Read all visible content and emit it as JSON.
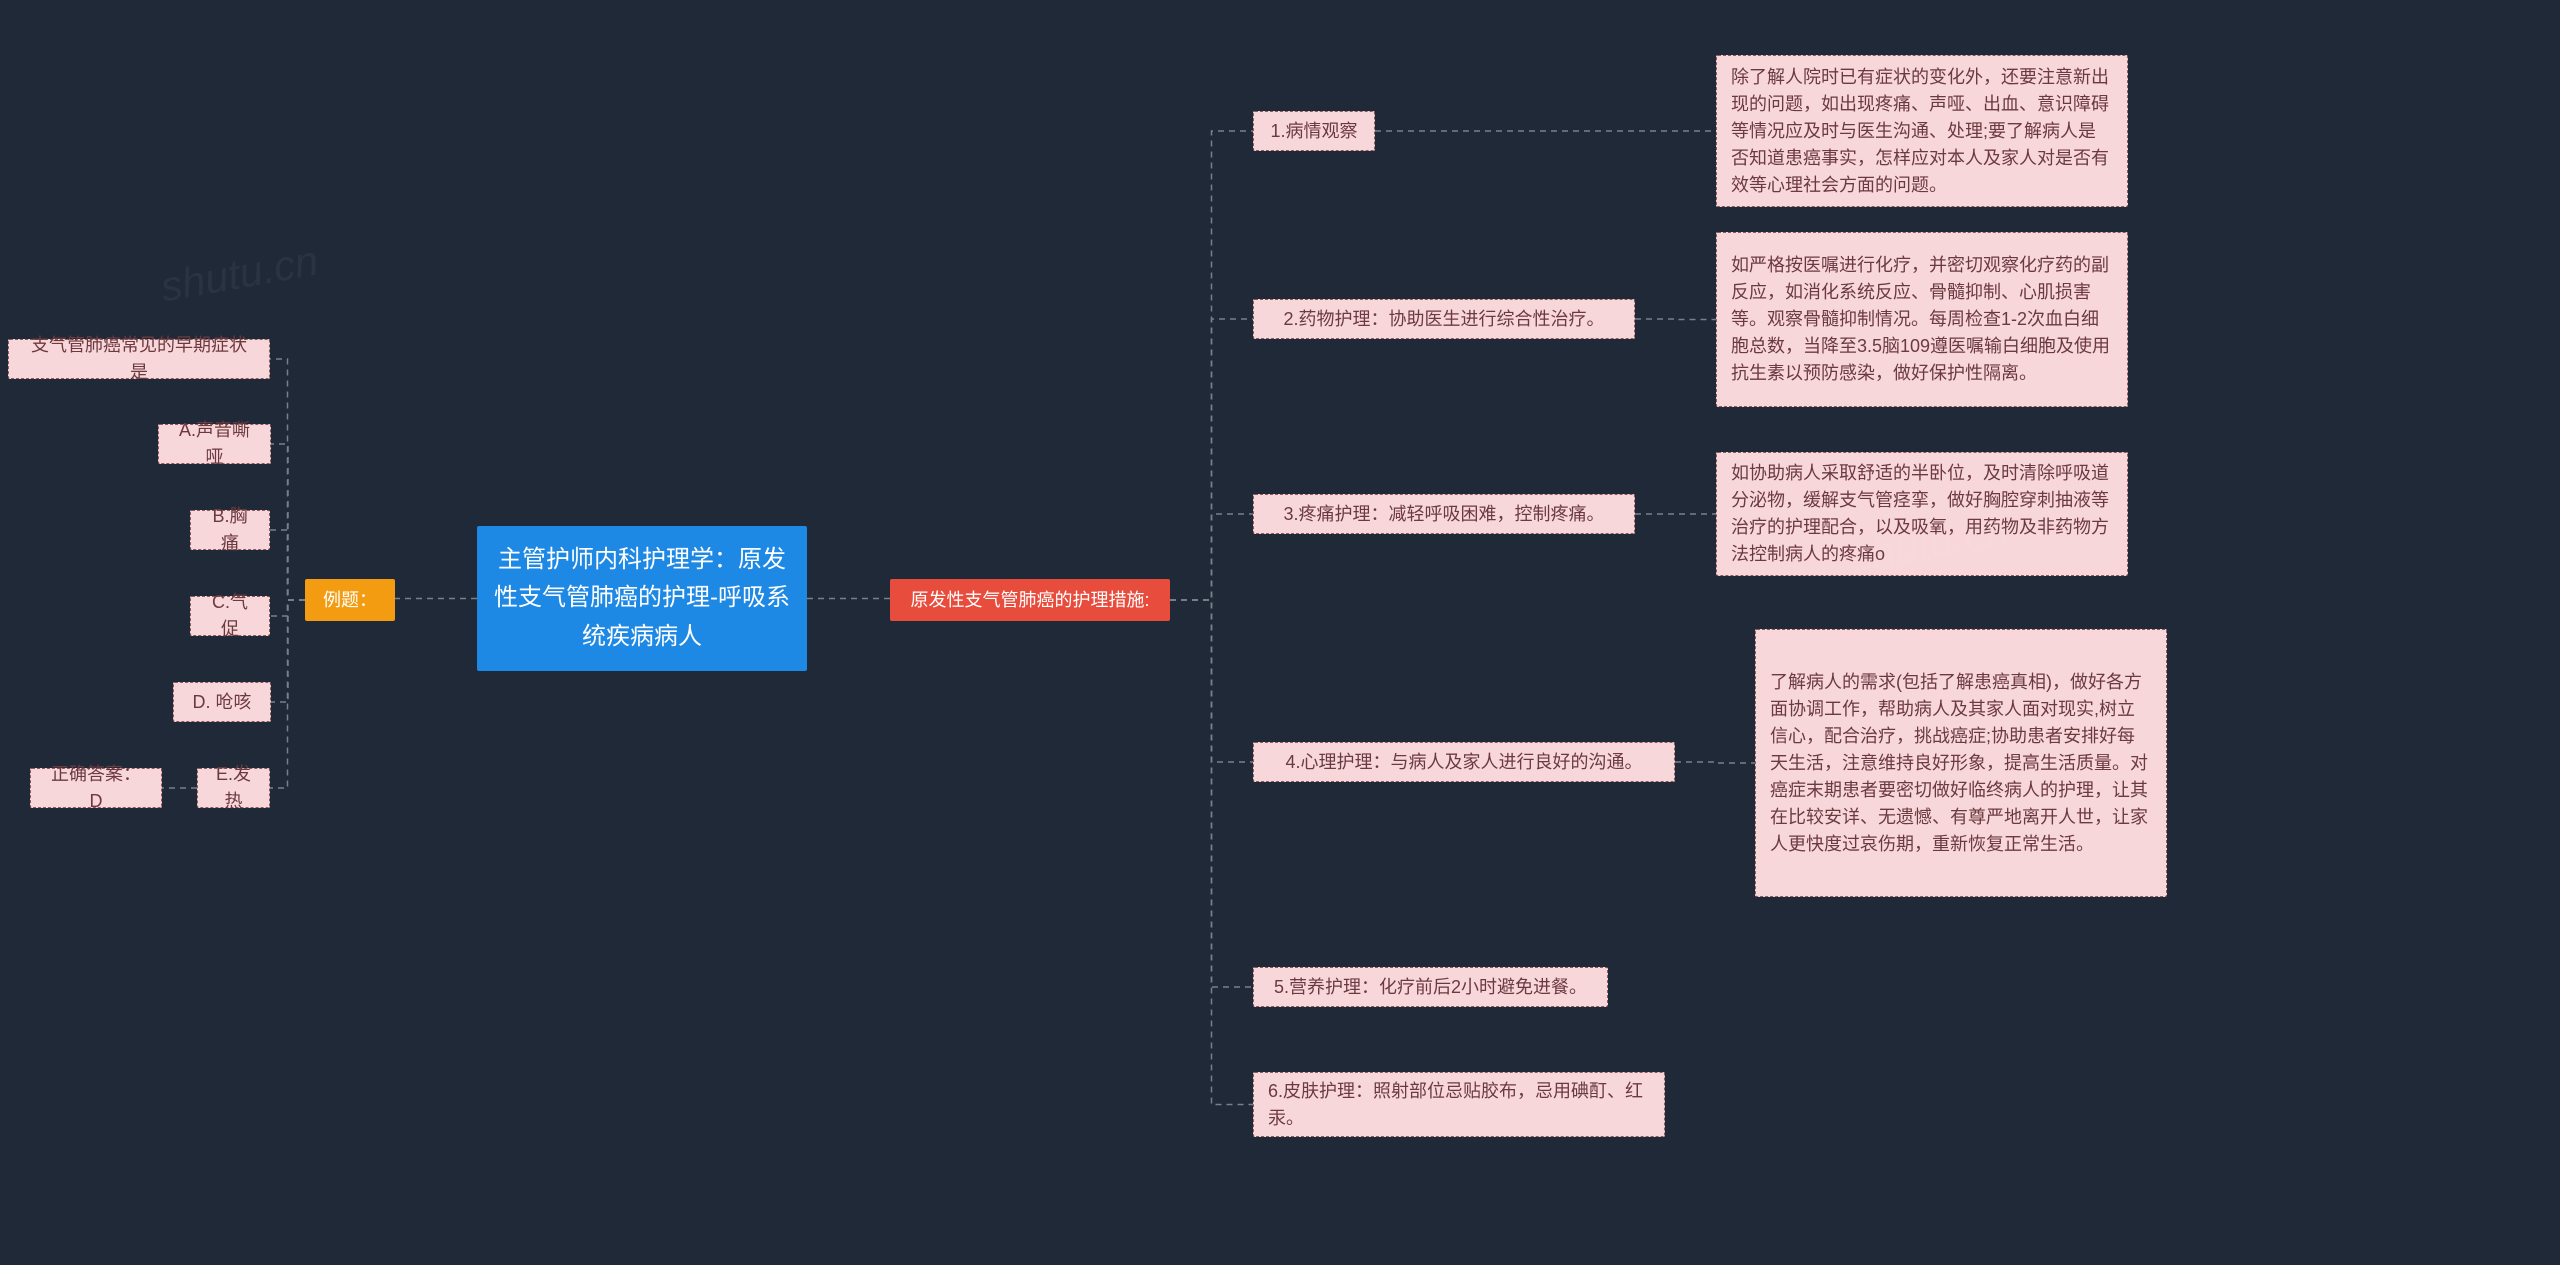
{
  "colors": {
    "bg": "#1f2937",
    "root_bg": "#1e88e5",
    "root_fg": "#ffffff",
    "branch_left_bg": "#f39c12",
    "branch_left_fg": "#ffffff",
    "branch_right_bg": "#e74c3c",
    "branch_right_fg": "#ffffff",
    "leaf_bg": "#f8d7da",
    "leaf_fg": "#6b3a3f",
    "leaf_border": "#8c5a5d",
    "connector": "#7a7f8a"
  },
  "root": {
    "text": "主管护师内科护理学：原发性支气管肺癌的护理-呼吸系统疾病病人"
  },
  "left_branch": {
    "label": "例题：",
    "children": [
      {
        "id": "q",
        "text": "支气管肺癌常见的早期症状是"
      },
      {
        "id": "a",
        "text": "A.声音嘶哑"
      },
      {
        "id": "b",
        "text": "B.胸痛"
      },
      {
        "id": "c",
        "text": "C.气促"
      },
      {
        "id": "d",
        "text": "D. 呛咳"
      },
      {
        "id": "e",
        "text": "E.发热",
        "answer": "正确答案：D"
      }
    ]
  },
  "right_branch": {
    "label": "原发性支气管肺癌的护理措施:",
    "children": [
      {
        "id": "r1",
        "text": "1.病情观察",
        "detail": "除了解人院时已有症状的变化外，还要注意新出现的问题，如出现疼痛、声哑、出血、意识障碍等情况应及时与医生沟通、处理;要了解病人是否知道患癌事实，怎样应对本人及家人对是否有效等心理社会方面的问题。"
      },
      {
        "id": "r2",
        "text": "2.药物护理：协助医生进行综合性治疗。",
        "detail": "如严格按医嘱进行化疗，并密切观察化疗药的副反应，如消化系统反应、骨髓抑制、心肌损害等。观察骨髓抑制情况。每周检查1-2次血白细胞总数，当降至3.5脑109遵医嘱输白细胞及使用抗生素以预防感染，做好保护性隔离。"
      },
      {
        "id": "r3",
        "text": "3.疼痛护理：减轻呼吸困难，控制疼痛。",
        "detail": "如协助病人采取舒适的半卧位，及时清除呼吸道分泌物，缓解支气管痉挛，做好胸腔穿刺抽液等治疗的护理配合，以及吸氧，用药物及非药物方法控制病人的疼痛o"
      },
      {
        "id": "r4",
        "text": "4.心理护理：与病人及家人进行良好的沟通。",
        "detail": "了解病人的需求(包括了解患癌真相)，做好各方面协调工作，帮助病人及其家人面对现实,树立信心，配合治疗，挑战癌症;协助患者安排好每天生活，注意维持良好形象，提高生活质量。对癌症末期患者要密切做好临终病人的护理，让其在比较安详、无遗憾、有尊严地离开人世，让家人更快度过哀伤期，重新恢复正常生活。"
      },
      {
        "id": "r5",
        "text": "5.营养护理：化疗前后2小时避免进餐。"
      },
      {
        "id": "r6",
        "text": "6.皮肤护理：照射部位忌贴胶布，忌用碘酊、红汞。"
      }
    ]
  },
  "watermarks": [
    "shutu.cn",
    "shutu.cn"
  ]
}
